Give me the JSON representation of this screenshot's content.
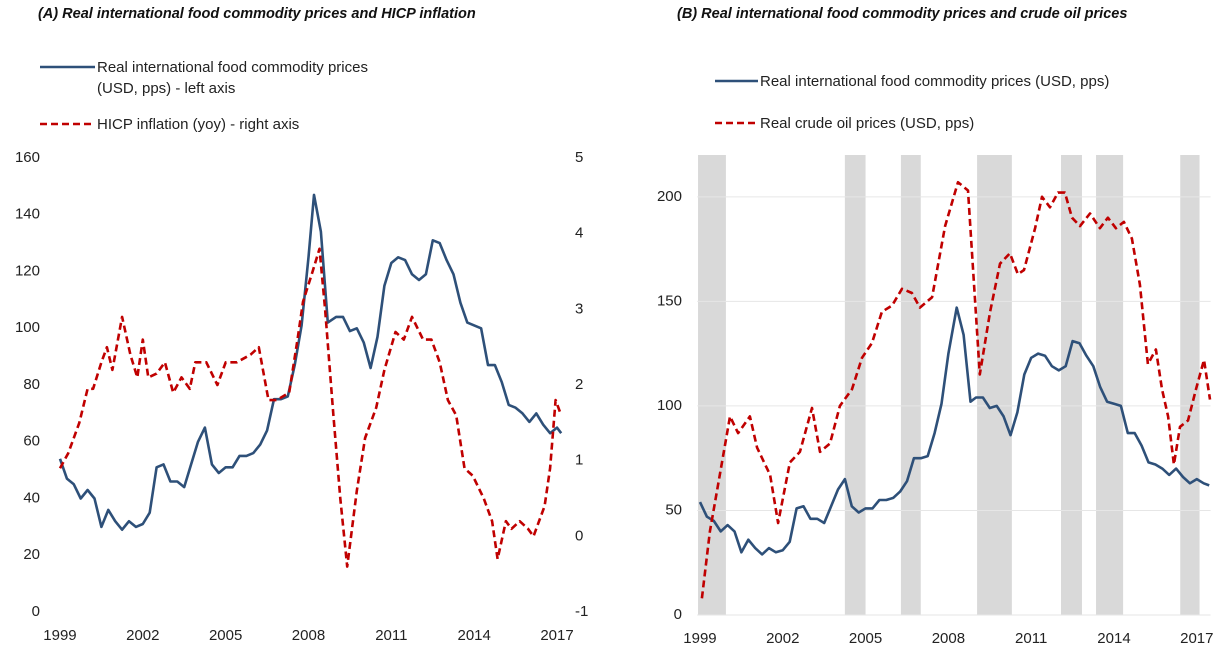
{
  "chart_data": [
    {
      "type": "line",
      "title": "(A) Real international food commodity prices and HICP inflation",
      "xlim": [
        1998.95,
        2017.3
      ],
      "xticks": [
        1999,
        2002,
        2005,
        2008,
        2011,
        2014,
        2017
      ],
      "ylim": [
        0,
        160
      ],
      "yticks": [
        0,
        20,
        40,
        60,
        80,
        100,
        120,
        140,
        160
      ],
      "y2lim": [
        -1,
        5
      ],
      "y2ticks": [
        -1,
        0,
        1,
        2,
        3,
        4,
        5
      ],
      "grid": false,
      "series": [
        {
          "name": "Real international food commodity prices (USD, pps) - left axis",
          "color": "#2e5079",
          "dashed": false,
          "x": [
            1999,
            1999.25,
            1999.5,
            1999.75,
            2000,
            2000.25,
            2000.5,
            2000.75,
            2001,
            2001.25,
            2001.5,
            2001.75,
            2002,
            2002.25,
            2002.5,
            2002.75,
            2003,
            2003.25,
            2003.5,
            2003.75,
            2004,
            2004.25,
            2004.5,
            2004.75,
            2005,
            2005.25,
            2005.5,
            2005.75,
            2006,
            2006.25,
            2006.5,
            2006.75,
            2007,
            2007.25,
            2007.5,
            2007.75,
            2008,
            2008.2,
            2008.45,
            2008.7,
            2009,
            2009.25,
            2009.5,
            2009.75,
            2010,
            2010.25,
            2010.5,
            2010.75,
            2011,
            2011.25,
            2011.5,
            2011.75,
            2012,
            2012.25,
            2012.5,
            2012.75,
            2013,
            2013.25,
            2013.5,
            2013.75,
            2014,
            2014.25,
            2014.5,
            2014.75,
            2015,
            2015.25,
            2015.5,
            2015.75,
            2016,
            2016.25,
            2016.5,
            2016.75,
            2017,
            2017.15
          ],
          "values": [
            54,
            47,
            45,
            40,
            43,
            40,
            30,
            36,
            32,
            29,
            32,
            30,
            31,
            35,
            51,
            52,
            46,
            46,
            44,
            52,
            60,
            65,
            52,
            49,
            51,
            51,
            55,
            55,
            56,
            59,
            64,
            75,
            75,
            76,
            87,
            101,
            125,
            147,
            134,
            102,
            104,
            104,
            99,
            100,
            95,
            86,
            97,
            115,
            123,
            125,
            124,
            119,
            117,
            119,
            131,
            130,
            124,
            119,
            109,
            102,
            101,
            100,
            87,
            87,
            81,
            73,
            72,
            70,
            67,
            70,
            66,
            63,
            65,
            63
          ]
        },
        {
          "name": "HICP inflation (yoy) - right axis",
          "color": "#c00000",
          "dashed": true,
          "axis": "y2",
          "x": [
            1999,
            1999.3,
            1999.7,
            2000,
            2000.2,
            2000.5,
            2000.7,
            2000.9,
            2001.25,
            2001.55,
            2001.8,
            2002,
            2002.2,
            2002.5,
            2002.8,
            2003.1,
            2003.4,
            2003.7,
            2003.9,
            2004.3,
            2004.7,
            2005,
            2005.4,
            2005.9,
            2006.2,
            2006.55,
            2006.85,
            2007.3,
            2007.6,
            2007.8,
            2008.15,
            2008.4,
            2008.6,
            2008.9,
            2009.15,
            2009.4,
            2009.75,
            2010.05,
            2010.45,
            2010.75,
            2011.15,
            2011.45,
            2011.75,
            2012.15,
            2012.45,
            2012.75,
            2013.05,
            2013.35,
            2013.65,
            2013.95,
            2014.35,
            2014.65,
            2014.85,
            2015.15,
            2015.35,
            2015.65,
            2015.95,
            2016.15,
            2016.55,
            2016.75,
            2016.95,
            2017.15
          ],
          "values": [
            0.9,
            1.1,
            1.5,
            1.95,
            1.95,
            2.3,
            2.5,
            2.2,
            2.9,
            2.4,
            2.1,
            2.6,
            2.1,
            2.15,
            2.3,
            1.9,
            2.1,
            1.95,
            2.3,
            2.3,
            2.0,
            2.3,
            2.3,
            2.4,
            2.5,
            1.8,
            1.8,
            1.9,
            2.6,
            3.1,
            3.5,
            3.8,
            3.0,
            1.6,
            0.5,
            -0.4,
            0.6,
            1.3,
            1.7,
            2.2,
            2.7,
            2.6,
            2.9,
            2.6,
            2.6,
            2.3,
            1.8,
            1.6,
            0.9,
            0.8,
            0.5,
            0.2,
            -0.3,
            0.2,
            0.1,
            0.2,
            0.1,
            0.0,
            0.4,
            0.9,
            1.8,
            1.6
          ]
        }
      ]
    },
    {
      "type": "line",
      "title": "(B) Real international food commodity prices and crude oil prices",
      "xlim": [
        1998.9,
        2017.5
      ],
      "xticks": [
        1999,
        2002,
        2005,
        2008,
        2011,
        2014,
        2017
      ],
      "ylim": [
        0,
        220
      ],
      "yticks": [
        0,
        50,
        100,
        150,
        200
      ],
      "grid": true,
      "shaded_periods": [
        [
          1998.93,
          1999.94
        ],
        [
          2004.25,
          2005.0
        ],
        [
          2006.28,
          2007.0
        ],
        [
          2009.04,
          2010.3
        ],
        [
          2012.08,
          2012.84
        ],
        [
          2013.35,
          2014.33
        ],
        [
          2016.4,
          2017.1
        ]
      ],
      "shade_color": "#d9d9d9",
      "series": [
        {
          "name": "Real international food commodity prices (USD, pps)",
          "color": "#2e5079",
          "dashed": false,
          "x": [
            1999,
            1999.25,
            1999.5,
            1999.75,
            2000,
            2000.25,
            2000.5,
            2000.75,
            2001,
            2001.25,
            2001.5,
            2001.75,
            2002,
            2002.25,
            2002.5,
            2002.75,
            2003,
            2003.25,
            2003.5,
            2003.75,
            2004,
            2004.25,
            2004.5,
            2004.75,
            2005,
            2005.25,
            2005.5,
            2005.75,
            2006,
            2006.25,
            2006.5,
            2006.75,
            2007,
            2007.25,
            2007.5,
            2007.75,
            2008,
            2008.3,
            2008.55,
            2008.8,
            2009,
            2009.25,
            2009.5,
            2009.75,
            2010,
            2010.25,
            2010.5,
            2010.75,
            2011,
            2011.25,
            2011.5,
            2011.75,
            2012,
            2012.25,
            2012.5,
            2012.75,
            2013,
            2013.25,
            2013.5,
            2013.75,
            2014,
            2014.25,
            2014.5,
            2014.75,
            2015,
            2015.25,
            2015.5,
            2015.75,
            2016,
            2016.25,
            2016.5,
            2016.75,
            2017,
            2017.25,
            2017.45
          ],
          "values": [
            54,
            47,
            45,
            40,
            43,
            40,
            30,
            36,
            32,
            29,
            32,
            30,
            31,
            35,
            51,
            52,
            46,
            46,
            44,
            52,
            60,
            65,
            52,
            49,
            51,
            51,
            55,
            55,
            56,
            59,
            64,
            75,
            75,
            76,
            87,
            101,
            125,
            147,
            134,
            102,
            104,
            104,
            99,
            100,
            95,
            86,
            97,
            115,
            123,
            125,
            124,
            119,
            117,
            119,
            131,
            130,
            124,
            119,
            109,
            102,
            101,
            100,
            87,
            87,
            81,
            73,
            72,
            70,
            67,
            70,
            66,
            63,
            65,
            63,
            62
          ]
        },
        {
          "name": "Real crude oil prices (USD, pps)",
          "color": "#c00000",
          "dashed": true,
          "x": [
            1999.07,
            1999.36,
            1999.72,
            2000.09,
            2000.38,
            2000.81,
            2001.07,
            2001.54,
            2001.83,
            2002.26,
            2002.62,
            2003.06,
            2003.35,
            2003.71,
            2004.07,
            2004.51,
            2004.87,
            2005.23,
            2005.59,
            2005.96,
            2006.32,
            2006.68,
            2006.97,
            2007.41,
            2007.88,
            2008.35,
            2008.71,
            2009.14,
            2009.51,
            2009.87,
            2010.23,
            2010.52,
            2010.74,
            2011.14,
            2011.39,
            2011.68,
            2011.97,
            2012.22,
            2012.48,
            2012.77,
            2013.13,
            2013.49,
            2013.78,
            2014.07,
            2014.36,
            2014.65,
            2014.94,
            2015.23,
            2015.52,
            2015.74,
            2015.96,
            2016.17,
            2016.39,
            2016.68,
            2016.97,
            2017.26,
            2017.48
          ],
          "values": [
            8,
            40,
            67,
            95,
            87,
            95,
            80,
            67,
            44,
            73,
            78,
            99,
            78,
            82,
            100,
            108,
            123,
            130,
            145,
            148,
            156,
            154,
            147,
            152,
            186,
            207,
            203,
            115,
            145,
            168,
            173,
            163,
            165,
            185,
            200,
            195,
            202,
            202,
            190,
            186,
            192,
            185,
            190,
            185,
            188,
            180,
            158,
            120,
            127,
            108,
            95,
            72,
            90,
            93,
            108,
            122,
            103
          ]
        }
      ]
    }
  ]
}
